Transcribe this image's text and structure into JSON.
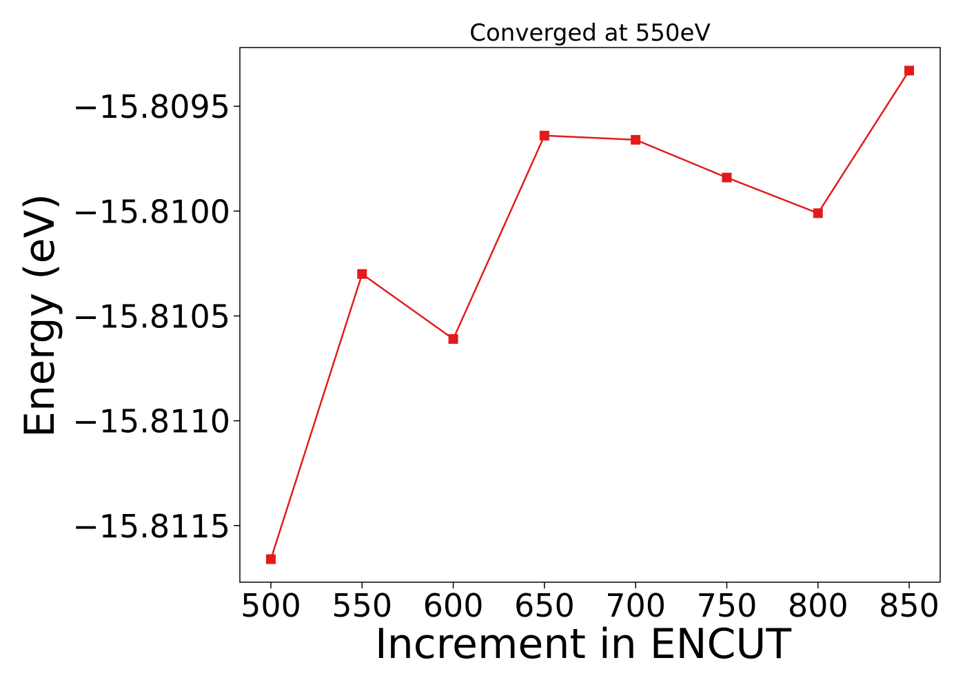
{
  "chart_data": {
    "type": "line",
    "title": "Converged at 550eV",
    "xlabel": "Increment in ENCUT",
    "ylabel": "Energy (eV)",
    "x": [
      500,
      550,
      600,
      650,
      700,
      750,
      800,
      850
    ],
    "series": [
      {
        "values": [
          -15.81166,
          -15.8103,
          -15.81061,
          -15.80964,
          -15.80966,
          -15.80984,
          -15.81001,
          -15.80933
        ],
        "color": "#e31a1c",
        "marker": "square"
      }
    ],
    "xlim": [
      483,
      867
    ],
    "ylim": [
      -15.81177,
      -15.80922
    ],
    "xticks": [
      500,
      550,
      600,
      650,
      700,
      750,
      800,
      850
    ],
    "xtick_labels": [
      "500",
      "550",
      "600",
      "650",
      "700",
      "750",
      "800",
      "850"
    ],
    "yticks": [
      -15.8115,
      -15.811,
      -15.8105,
      -15.81,
      -15.8095
    ],
    "ytick_labels": [
      "−15.8115",
      "−15.8110",
      "−15.8105",
      "−15.8100",
      "−15.8095"
    ],
    "grid": false,
    "legend": "none"
  }
}
